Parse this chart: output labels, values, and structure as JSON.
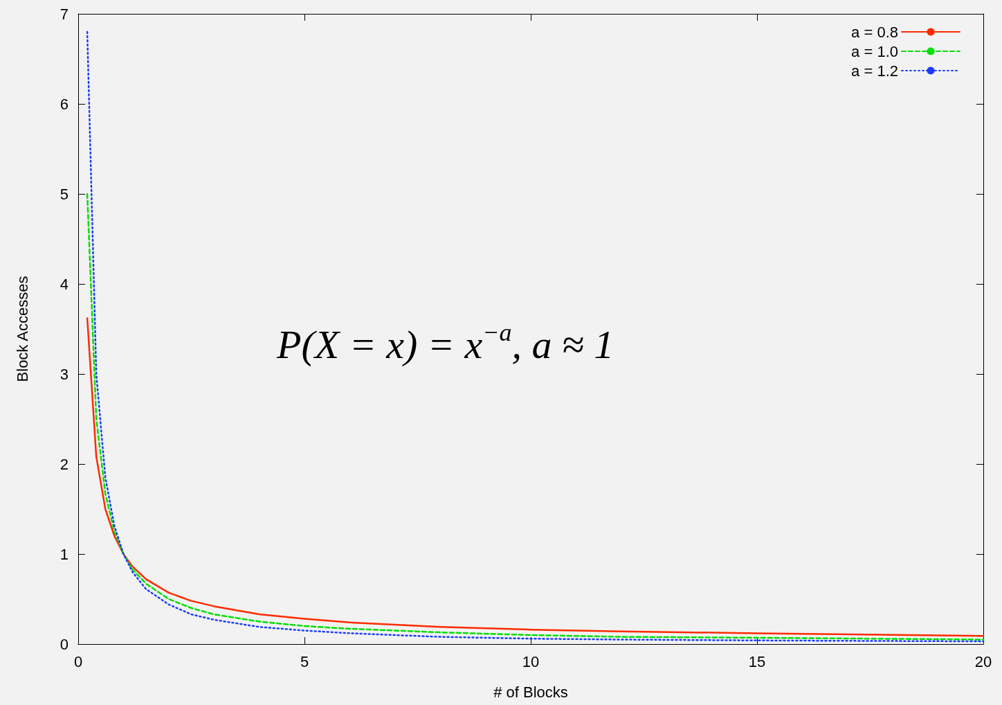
{
  "chart_data": {
    "type": "line",
    "xlabel": "# of Blocks",
    "ylabel": "Block Accesses",
    "annotations": [
      "P(X = x) = x$^{−a}$, a ≈ 1"
    ],
    "x": [
      0.2,
      0.4,
      0.6,
      0.8,
      1,
      1.2,
      1.5,
      2,
      2.5,
      3,
      4,
      5,
      6,
      8,
      10,
      12,
      15,
      20
    ],
    "series": [
      {
        "name": "a = 0.8",
        "color": "#ff2a00",
        "line_style": "solid",
        "values": [
          3.62,
          2.08,
          1.5,
          1.2,
          1,
          0.86,
          0.72,
          0.57,
          0.48,
          0.42,
          0.33,
          0.28,
          0.24,
          0.19,
          0.16,
          0.14,
          0.12,
          0.09
        ]
      },
      {
        "name": "a = 1.0",
        "color": "#00e000",
        "line_style": "dashed",
        "values": [
          5,
          2.5,
          1.67,
          1.25,
          1,
          0.83,
          0.67,
          0.5,
          0.4,
          0.33,
          0.25,
          0.2,
          0.17,
          0.13,
          0.1,
          0.08,
          0.07,
          0.05
        ]
      },
      {
        "name": "a = 1.2",
        "color": "#1a3cff",
        "line_style": "dotted",
        "values": [
          6.8,
          3.0,
          1.85,
          1.31,
          1,
          0.8,
          0.61,
          0.44,
          0.33,
          0.27,
          0.19,
          0.15,
          0.12,
          0.08,
          0.06,
          0.05,
          0.04,
          0.03
        ]
      }
    ],
    "xlim": [
      0,
      20
    ],
    "xticks": [
      0,
      5,
      10,
      15,
      20
    ],
    "ylim": [
      0,
      7
    ],
    "yticks": [
      0,
      1,
      2,
      3,
      4,
      5,
      6,
      7
    ],
    "grid": false,
    "legend": "top right",
    "marker": "none"
  }
}
